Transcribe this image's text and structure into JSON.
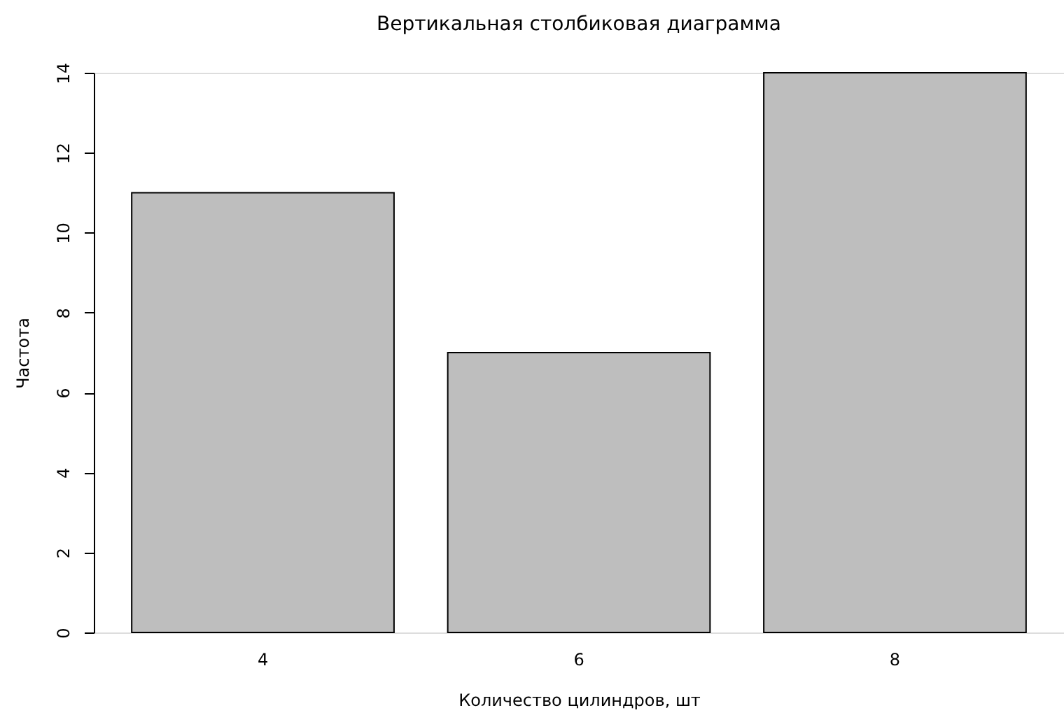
{
  "chart_data": {
    "type": "bar",
    "title": "Вертикальная столбиковая диаграмма",
    "xlabel": "Количество цилиндров, шт",
    "ylabel": "Частота",
    "categories": [
      "4",
      "6",
      "8"
    ],
    "values": [
      11,
      7,
      14
    ],
    "color": "#bebebe",
    "ylim": [
      0,
      14
    ],
    "yticks": [
      0,
      2,
      4,
      6,
      8,
      10,
      12,
      14
    ],
    "grid": false
  }
}
